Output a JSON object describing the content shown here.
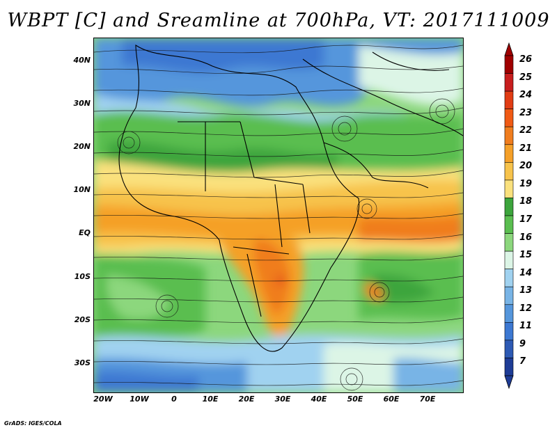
{
  "title": "WBPT [C] and Sreamline at 700hPa, VT: 2017111009",
  "credit": "GrADS: IGES/COLA",
  "lat_labels": [
    "40N",
    "30N",
    "20N",
    "10N",
    "EQ",
    "10S",
    "20S",
    "30S"
  ],
  "lon_labels": [
    "20W",
    "10W",
    "0",
    "10E",
    "20E",
    "30E",
    "40E",
    "50E",
    "60E",
    "70E"
  ],
  "colorbar": {
    "labels": [
      "26",
      "25",
      "24",
      "23",
      "22",
      "21",
      "20",
      "19",
      "18",
      "17",
      "16",
      "15",
      "14",
      "13",
      "12",
      "11",
      "9",
      "7"
    ],
    "colors": [
      "#a00000",
      "#c81e1e",
      "#e13c14",
      "#f05a14",
      "#f07d1e",
      "#f5a028",
      "#f7c34b",
      "#fae17d",
      "#3ca53c",
      "#5abe50",
      "#8cd77d",
      "#dcf5e6",
      "#a0d2f0",
      "#78b4e6",
      "#5596dc",
      "#3c78d2",
      "#2d5ab4",
      "#1e3c96"
    ]
  },
  "legend_note": "Filled contours of 700hPa wet-bulb potential temperature with streamlines"
}
